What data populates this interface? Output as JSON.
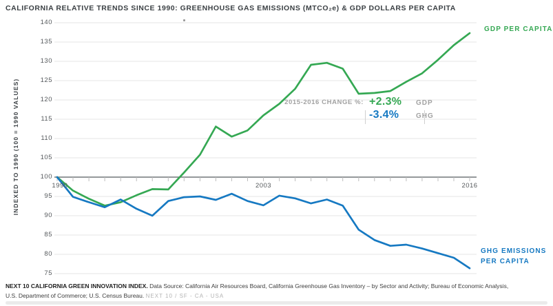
{
  "title": "CALIFORNIA RELATIVE TRENDS SINCE 1990: GREENHOUSE GAS EMISSIONS (MTCO₂e) & GDP DOLLARS PER CAPITA",
  "colors": {
    "gdp_green": "#35a853",
    "ghg_blue": "#1679c2",
    "gridline": "#e4e5e6",
    "axis_line": "#85898c",
    "tick": "#bcbcbc",
    "muted_text": "#a2a2a2"
  },
  "chart_data": {
    "type": "line",
    "title": "CALIFORNIA RELATIVE TRENDS SINCE 1990: GREENHOUSE GAS EMISSIONS (MTCO₂e) & GDP DOLLARS PER CAPITA",
    "ylabel": "INDEXED TO 1990 (100 = 1990 VALUES)",
    "xlabel": "",
    "ylim": [
      75,
      140
    ],
    "yticks": [
      75,
      80,
      85,
      90,
      95,
      100,
      105,
      110,
      115,
      120,
      125,
      130,
      135,
      140
    ],
    "baseline_value": 100,
    "grid": true,
    "legend_position": "right-of-line-ends",
    "x": [
      1990,
      1991,
      1992,
      1993,
      1994,
      1995,
      1996,
      1997,
      1998,
      1999,
      2000,
      2001,
      2002,
      2003,
      2004,
      2005,
      2006,
      2007,
      2008,
      2009,
      2010,
      2011,
      2012,
      2013,
      2014,
      2015,
      2016
    ],
    "x_axis_labels": [
      "1990",
      "2003",
      "2016"
    ],
    "series": [
      {
        "id": "gdp",
        "name": "GDP PER CAPITA",
        "color": "#35a853",
        "values": [
          100,
          96.5,
          94.4,
          92.6,
          93.5,
          95.3,
          96.9,
          96.8,
          101.2,
          105.8,
          113.1,
          110.5,
          112.1,
          116.0,
          119.0,
          122.9,
          129.1,
          129.6,
          128.1,
          121.6,
          121.8,
          122.3,
          124.7,
          126.9,
          130.4,
          134.2,
          137.3
        ]
      },
      {
        "id": "ghg",
        "name": "GHG EMISSIONS PER CAPITA",
        "color": "#1679c2",
        "values": [
          100,
          94.9,
          93.5,
          92.2,
          94.2,
          91.8,
          90.0,
          93.8,
          94.8,
          95.0,
          94.1,
          95.7,
          93.8,
          92.7,
          95.2,
          94.5,
          93.2,
          94.2,
          92.6,
          86.4,
          83.7,
          82.2,
          82.5,
          81.5,
          80.3,
          79.1,
          76.4
        ]
      }
    ]
  },
  "series_labels": {
    "gdp": "GDP PER CAPITA",
    "ghg_line1": "GHG EMISSIONS",
    "ghg_line2": "PER CAPITA"
  },
  "annotation": {
    "label": "2015-2016 CHANGE %:",
    "gdp_value": "+2.3%",
    "gdp_unit": "GDP",
    "ghg_value": "-3.4%",
    "ghg_unit": "GHG"
  },
  "footer": {
    "line1_bold": "NEXT 10 CALIFORNIA GREEN INNOVATION INDEX.",
    "line1_rest": " Data Source: California Air Resources Board, California Greenhouse Gas Inventory – by Sector and Activity; Bureau of Economic Analysis,",
    "line2": "U.S. Department of Commerce; U.S. Census Bureau. ",
    "line2_tag": "NEXT 10  /  SF - CA - USA"
  }
}
